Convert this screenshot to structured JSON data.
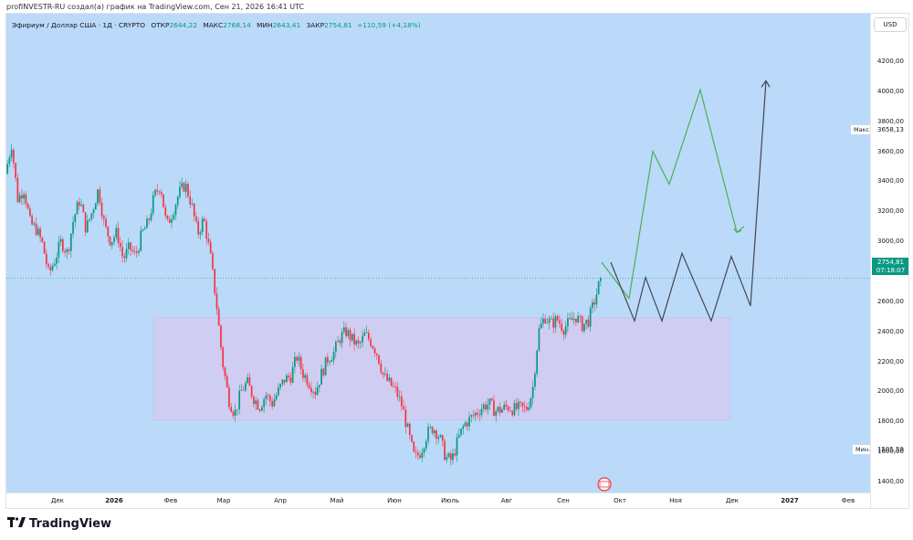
{
  "header": {
    "credit": "profINVESTR-RU создал(а) график на TradingView.com, Сен 21, 2026 16:41 UTC"
  },
  "legend": {
    "symbol": "Эфириум / Доллар США · 1Д · CRYPTO",
    "open_label": "ОТКР",
    "open_value": "2644,22",
    "high_label": "МАКС",
    "high_value": "2768,14",
    "low_label": "МИН",
    "low_value": "2643,41",
    "close_label": "ЗАКР",
    "close_value": "2754,81",
    "change_value": "+110,59 (+4,18%)"
  },
  "price_axis": {
    "currency": "USD",
    "ticks": [
      "4200,00",
      "4000,00",
      "3800,00",
      "3600,00",
      "3400,00",
      "3200,00",
      "3000,00",
      "2800,00",
      "2600,00",
      "2400,00",
      "2200,00",
      "2000,00",
      "1800,00",
      "1600,00",
      "1400,00"
    ],
    "last_price": "2754,81",
    "countdown": "07:18:07",
    "max_tag": "Макс.",
    "max_value": "3658,13",
    "min_tag": "Мин.",
    "min_value": "1505,59"
  },
  "time_axis": {
    "labels": [
      {
        "text": "Дек",
        "bold": false
      },
      {
        "text": "2026",
        "bold": true
      },
      {
        "text": "Фев",
        "bold": false
      },
      {
        "text": "Мар",
        "bold": false
      },
      {
        "text": "Апр",
        "bold": false
      },
      {
        "text": "Май",
        "bold": false
      },
      {
        "text": "Июн",
        "bold": false
      },
      {
        "text": "Июль",
        "bold": false
      },
      {
        "text": "Авг",
        "bold": false
      },
      {
        "text": "Сен",
        "bold": false
      },
      {
        "text": "Окт",
        "bold": false
      },
      {
        "text": "Ноя",
        "bold": false
      },
      {
        "text": "Дек",
        "bold": false
      },
      {
        "text": "2027",
        "bold": true
      },
      {
        "text": "Фев",
        "bold": false
      }
    ]
  },
  "footer": {
    "brand": "TradingView"
  },
  "colors": {
    "background": "#bbdaf9",
    "up": "#089981",
    "down": "#f23645",
    "range_box": "#d7c8ef",
    "green_projection": "#4caf50",
    "grey_projection": "#434651"
  },
  "chart_data": {
    "type": "candlestick",
    "symbol": "ETH/USD",
    "timeframe": "1D",
    "y_range": [
      1300,
      4350
    ],
    "last_close": 2754.81,
    "range_high": 3658.13,
    "range_low": 1505.59,
    "ohlc_path": [
      [
        0,
        3450
      ],
      [
        2,
        3650
      ],
      [
        4,
        3280
      ],
      [
        6,
        3350
      ],
      [
        8,
        3120
      ],
      [
        10,
        3080
      ],
      [
        12,
        2980
      ],
      [
        14,
        2780
      ],
      [
        16,
        2880
      ],
      [
        18,
        3000
      ],
      [
        20,
        2920
      ],
      [
        22,
        3150
      ],
      [
        24,
        3280
      ],
      [
        26,
        3080
      ],
      [
        28,
        3200
      ],
      [
        30,
        3350
      ],
      [
        32,
        3100
      ],
      [
        34,
        3000
      ],
      [
        36,
        3060
      ],
      [
        38,
        2880
      ],
      [
        40,
        2960
      ],
      [
        42,
        2900
      ],
      [
        44,
        3050
      ],
      [
        46,
        3120
      ],
      [
        48,
        3300
      ],
      [
        50,
        3380
      ],
      [
        52,
        3100
      ],
      [
        54,
        3200
      ],
      [
        56,
        3320
      ],
      [
        58,
        3380
      ],
      [
        60,
        3250
      ],
      [
        62,
        3050
      ],
      [
        64,
        3150
      ],
      [
        66,
        2920
      ],
      [
        68,
        2600
      ],
      [
        70,
        2200
      ],
      [
        72,
        1950
      ],
      [
        74,
        1850
      ],
      [
        76,
        2000
      ],
      [
        78,
        2060
      ],
      [
        80,
        1960
      ],
      [
        82,
        1900
      ],
      [
        84,
        1980
      ],
      [
        86,
        1920
      ],
      [
        88,
        2000
      ],
      [
        90,
        2080
      ],
      [
        92,
        2100
      ],
      [
        94,
        2230
      ],
      [
        96,
        2120
      ],
      [
        98,
        2060
      ],
      [
        100,
        2000
      ],
      [
        102,
        2120
      ],
      [
        104,
        2220
      ],
      [
        106,
        2260
      ],
      [
        108,
        2360
      ],
      [
        110,
        2400
      ],
      [
        112,
        2340
      ],
      [
        114,
        2300
      ],
      [
        116,
        2380
      ],
      [
        118,
        2330
      ],
      [
        120,
        2250
      ],
      [
        122,
        2100
      ],
      [
        124,
        2050
      ],
      [
        126,
        2000
      ],
      [
        128,
        1900
      ],
      [
        130,
        1720
      ],
      [
        132,
        1550
      ],
      [
        134,
        1600
      ],
      [
        136,
        1720
      ],
      [
        138,
        1760
      ],
      [
        140,
        1700
      ],
      [
        142,
        1560
      ],
      [
        144,
        1540
      ],
      [
        146,
        1680
      ],
      [
        148,
        1780
      ],
      [
        150,
        1820
      ],
      [
        152,
        1860
      ],
      [
        154,
        1900
      ],
      [
        156,
        1920
      ],
      [
        158,
        1870
      ],
      [
        160,
        1880
      ],
      [
        162,
        1900
      ],
      [
        164,
        1880
      ],
      [
        166,
        1890
      ],
      [
        168,
        1880
      ],
      [
        170,
        2000
      ],
      [
        172,
        2400
      ],
      [
        174,
        2500
      ],
      [
        176,
        2450
      ],
      [
        178,
        2480
      ],
      [
        180,
        2420
      ],
      [
        182,
        2460
      ],
      [
        184,
        2500
      ],
      [
        186,
        2440
      ],
      [
        188,
        2470
      ],
      [
        190,
        2600
      ],
      [
        192,
        2755
      ]
    ],
    "annotations": {
      "range_box": {
        "y_high": 2490,
        "y_low": 1810,
        "x_start": "2026-01-29",
        "x_end": "2026-11-25"
      },
      "green_projection": [
        2860,
        2620,
        3600,
        3380,
        4010,
        3060,
        3100
      ],
      "grey_projection": [
        2860,
        2470,
        2760,
        2470,
        2920,
        2470,
        2900,
        2570,
        4070
      ]
    }
  }
}
